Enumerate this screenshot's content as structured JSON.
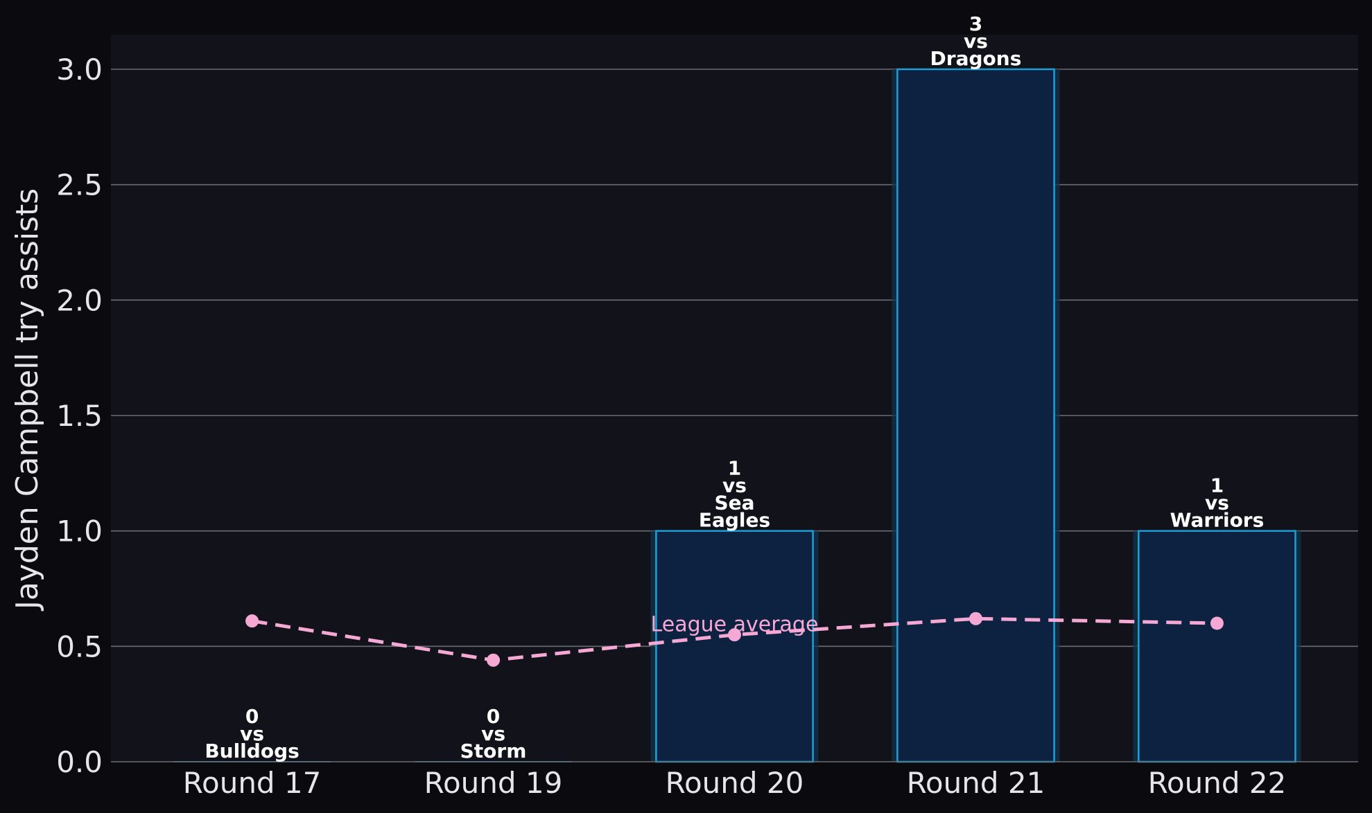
{
  "chart_data": {
    "type": "bar",
    "ylabel": "Jayden Campbell try assists",
    "xlabel": "",
    "ylim": [
      0,
      3.15
    ],
    "yticks": [
      "0.0",
      "0.5",
      "1.0",
      "1.5",
      "2.0",
      "2.5",
      "3.0"
    ],
    "ytick_values": [
      0,
      0.5,
      1,
      1.5,
      2,
      2.5,
      3
    ],
    "grid": true,
    "categories": [
      "Round 17",
      "Round 19",
      "Round 20",
      "Round 21",
      "Round 22"
    ],
    "series": [
      {
        "values": [
          0,
          0,
          1,
          3,
          1
        ],
        "labels": [
          [
            "0",
            "vs",
            "Bulldogs"
          ],
          [
            "0",
            "vs",
            "Storm"
          ],
          [
            "1",
            "vs",
            "Sea",
            "Eagles"
          ],
          [
            "3",
            "vs",
            "Dragons"
          ],
          [
            "1",
            "vs",
            "Warriors"
          ]
        ]
      },
      {
        "name": "League average",
        "type": "line",
        "style": "dashed",
        "values": [
          0.61,
          0.44,
          0.55,
          0.62,
          0.6
        ]
      }
    ],
    "colors": {
      "background": "#0b0b0f",
      "plot_background": "#12131a",
      "bar_fill": "#0d2140",
      "bar_edge": "#1e9fd6",
      "bar_glow": "#0f3550",
      "average_line": "#f6a8d4",
      "grid": "#6a6c73",
      "text": "#e6e6ea",
      "bar_label": "#ffffff"
    }
  }
}
